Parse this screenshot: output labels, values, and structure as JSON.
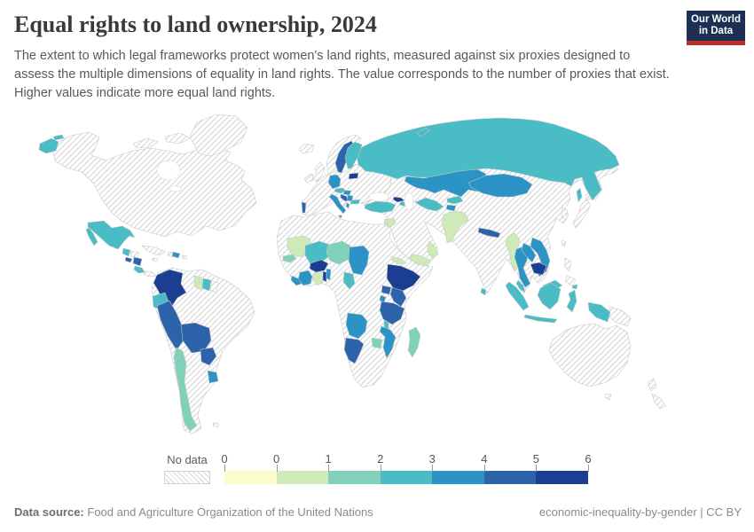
{
  "header": {
    "title": "Equal rights to land ownership, 2024",
    "subtitle": "The extent to which legal frameworks protect women's land rights, measured against six proxies designed to assess the multiple dimensions of equality in land rights. The value corresponds to the number of proxies that exist. Higher values indicate more equal land rights.",
    "logo": {
      "line1": "Our World",
      "line2": "in Data",
      "navy": "#1d3054",
      "red": "#c0302a"
    }
  },
  "legend": {
    "no_data_label": "No data",
    "ticks": [
      "0",
      "0",
      "1",
      "2",
      "3",
      "4",
      "5",
      "6"
    ],
    "bins": [
      {
        "label": "0",
        "color": "#fbfcc9"
      },
      {
        "label": "0-1",
        "color": "#cdeab7"
      },
      {
        "label": "1-2",
        "color": "#80d0ba"
      },
      {
        "label": "2-3",
        "color": "#49bcc6"
      },
      {
        "label": "3-4",
        "color": "#2b93c5"
      },
      {
        "label": "4-5",
        "color": "#2d63ab"
      },
      {
        "label": "5-6",
        "color": "#1c3e92"
      }
    ],
    "hatch_color": "#d8d8d8"
  },
  "footer": {
    "source_label": "Data source:",
    "source_text": "Food and Agriculture Organization of the United Nations",
    "right_text": "economic-inequality-by-gender | CC BY"
  },
  "map": {
    "countries": {
      "mexico": 3,
      "guatemala": 3,
      "el_salvador": 5,
      "nicaragua": 5,
      "costa_rica": 3,
      "dominican_republic": 4,
      "colombia": 6,
      "ecuador": 3,
      "peru": 5,
      "bolivia": 5,
      "paraguay": 5,
      "uruguay": 4,
      "chile": 2,
      "guyana": 1,
      "suriname": 3,
      "sweden": 5,
      "finland": 3,
      "lithuania": 6,
      "germany": 4,
      "austria": 3,
      "hungary": 4,
      "croatia": 5,
      "serbia": 4,
      "bulgaria": 3,
      "albania": 4,
      "italy": 4,
      "portugal": 5,
      "russia": 3,
      "turkey": 3,
      "georgia": 6,
      "azerbaijan": 3,
      "kazakhstan": 4,
      "uzbekistan": 3,
      "kyrgyzstan": 3,
      "tajikistan": 4,
      "mongolia": 4,
      "jordan": 1,
      "israel": 1,
      "yemen": 1,
      "oman": 1,
      "pakistan": 1,
      "nepal": 5,
      "sri_lanka": 3,
      "myanmar": 1,
      "thailand": 4,
      "laos": 4,
      "vietnam": 4,
      "cambodia": 6,
      "malaysia": 3,
      "indonesia": 3,
      "mauritania": 1,
      "senegal": 2,
      "mali": 3,
      "niger": 2,
      "chad": 4,
      "burkina_faso": 6,
      "ghana": 1,
      "togo": 6,
      "benin": 4,
      "cote_divoire": 4,
      "liberia": 4,
      "cameroon": 3,
      "eritrea": 1,
      "ethiopia": 6,
      "uganda": 5,
      "kenya": 5,
      "rwanda_burundi": 4,
      "tanzania": 5,
      "angola": 4,
      "malawi": 3,
      "mozambique": 4,
      "zimbabwe": 2,
      "namibia": 5,
      "madagascar": 2
    }
  },
  "chart_data": {
    "type": "heatmap",
    "subtype": "choropleth-world-map",
    "title": "Equal rights to land ownership, 2024",
    "unit": "number of legal proxies that exist (0–6)",
    "legend_bins": [
      "No data",
      "0",
      "0–1",
      "1–2",
      "2–3",
      "3–4",
      "4–5",
      "5–6"
    ],
    "values": {
      "Mexico": 3,
      "Guatemala": 3,
      "El Salvador": 5,
      "Nicaragua": 5,
      "Costa Rica": 3,
      "Dominican Republic": 4,
      "Colombia": 6,
      "Ecuador": 3,
      "Peru": 5,
      "Bolivia": 5,
      "Paraguay": 5,
      "Uruguay": 4,
      "Chile": 2,
      "Guyana": 1,
      "Suriname": 3,
      "Sweden": 5,
      "Finland": 3,
      "Lithuania": 6,
      "Germany": 4,
      "Austria": 3,
      "Hungary": 4,
      "Croatia": 5,
      "Serbia": 4,
      "Bulgaria": 3,
      "Albania": 4,
      "Italy": 4,
      "Portugal": 5,
      "Russia": 3,
      "Turkey": 3,
      "Georgia": 6,
      "Azerbaijan": 3,
      "Kazakhstan": 4,
      "Uzbekistan": 3,
      "Kyrgyzstan": 3,
      "Tajikistan": 4,
      "Mongolia": 4,
      "Jordan": 1,
      "Israel": 1,
      "Yemen": 1,
      "Oman": 1,
      "Pakistan": 1,
      "Nepal": 5,
      "Sri Lanka": 3,
      "Myanmar": 1,
      "Thailand": 4,
      "Laos": 4,
      "Vietnam": 4,
      "Cambodia": 6,
      "Malaysia": 3,
      "Indonesia": 3,
      "Mauritania": 1,
      "Senegal": 2,
      "Mali": 3,
      "Niger": 2,
      "Chad": 4,
      "Burkina Faso": 6,
      "Ghana": 1,
      "Togo": 6,
      "Benin": 4,
      "Cote d'Ivoire": 4,
      "Liberia": 4,
      "Cameroon": 3,
      "Eritrea": 1,
      "Ethiopia": 6,
      "Uganda": 5,
      "Kenya": 5,
      "Rwanda": 4,
      "Burundi": 4,
      "Tanzania": 5,
      "Angola": 4,
      "Malawi": 3,
      "Mozambique": 4,
      "Zimbabwe": 2,
      "Namibia": 5,
      "Madagascar": 2
    },
    "no_data": [
      "Canada",
      "United States",
      "Greenland",
      "Cuba",
      "Haiti",
      "Honduras",
      "Panama",
      "Venezuela",
      "Brazil",
      "Argentina",
      "French Guiana",
      "Iceland",
      "Norway",
      "United Kingdom",
      "Ireland",
      "France",
      "Spain",
      "Poland",
      "Ukraine",
      "Belarus",
      "Romania",
      "Greece",
      "Estonia",
      "Latvia",
      "Morocco",
      "Algeria",
      "Tunisia",
      "Libya",
      "Egypt",
      "Sudan",
      "Nigeria",
      "Somalia",
      "Democratic Republic of Congo",
      "Zambia",
      "Botswana",
      "South Africa",
      "Saudi Arabia",
      "Iraq",
      "Iran",
      "Syria",
      "Afghanistan",
      "Turkmenistan",
      "India",
      "China",
      "Japan",
      "South Korea",
      "Philippines",
      "Papua New Guinea",
      "Australia",
      "New Zealand"
    ]
  }
}
